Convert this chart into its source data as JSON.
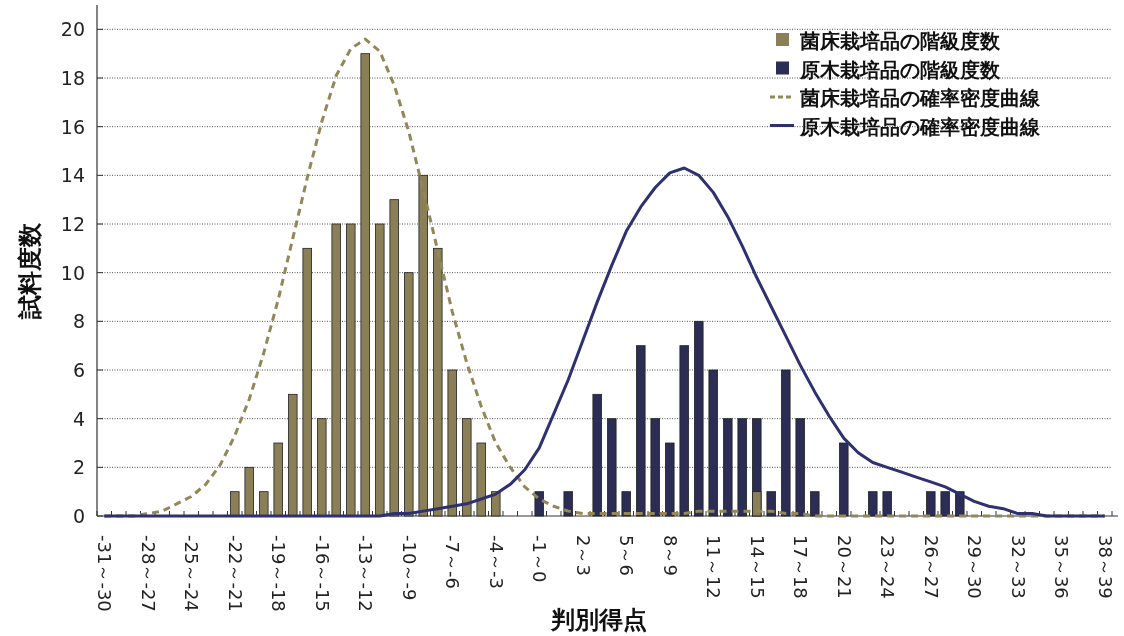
{
  "chart_data": {
    "type": "bar",
    "xlabel": "判別得点",
    "ylabel": "試料度数",
    "categories": [
      "-31～-30",
      null,
      null,
      "-28～-27",
      null,
      null,
      "-25～-24",
      null,
      null,
      "-22～-21",
      null,
      null,
      "-19～-18",
      null,
      null,
      "-16～-15",
      null,
      null,
      "-13～-12",
      null,
      null,
      "-10～-9",
      null,
      null,
      "-7～-6",
      null,
      null,
      "-4～-3",
      null,
      null,
      "-1～0",
      null,
      null,
      "2～3",
      null,
      null,
      "5～6",
      null,
      null,
      "8～9",
      null,
      null,
      "11～12",
      null,
      null,
      "14～15",
      null,
      null,
      "17～18",
      null,
      null,
      "20～21",
      null,
      null,
      "23～24",
      null,
      null,
      "26～27",
      null,
      null,
      "29～30",
      null,
      null,
      "32～33",
      null,
      null,
      "35～36",
      null,
      null,
      "38～39"
    ],
    "series": [
      {
        "name": "菌床栽培品の階級度数",
        "color": "#8b7f57",
        "values": [
          null,
          null,
          null,
          null,
          null,
          null,
          null,
          null,
          null,
          1,
          2,
          1,
          3,
          5,
          11,
          4,
          12,
          12,
          19,
          12,
          13,
          10,
          14,
          11,
          6,
          4,
          3,
          1,
          null,
          null,
          null,
          null,
          null,
          null,
          null,
          null,
          null,
          null,
          null,
          null,
          null,
          null,
          null,
          null,
          null,
          1,
          null,
          null,
          null,
          null,
          null,
          null,
          null,
          null,
          null,
          null,
          null,
          null,
          null,
          null,
          null,
          null,
          null,
          null,
          null,
          null,
          null,
          null,
          null,
          null
        ]
      },
      {
        "name": "原木栽培品の階級度数",
        "color": "#2b2d55",
        "values": [
          null,
          null,
          null,
          null,
          null,
          null,
          null,
          null,
          null,
          null,
          null,
          null,
          null,
          null,
          null,
          null,
          null,
          null,
          null,
          null,
          null,
          null,
          null,
          null,
          null,
          null,
          null,
          null,
          null,
          null,
          1,
          null,
          1,
          null,
          5,
          4,
          1,
          7,
          4,
          3,
          7,
          8,
          6,
          4,
          4,
          4,
          1,
          6,
          4,
          1,
          null,
          3,
          null,
          1,
          1,
          null,
          null,
          1,
          1,
          1,
          null,
          null,
          null,
          null,
          null,
          null,
          null,
          null,
          null,
          null
        ]
      },
      {
        "name": "菌床栽培品の確率密度曲線",
        "type": "line",
        "line_style": "dashed",
        "color": "#938659",
        "values": [
          0,
          0,
          0,
          0.1,
          0.2,
          0.5,
          0.8,
          1.3,
          2.1,
          3.3,
          4.8,
          6.7,
          8.9,
          11.4,
          13.9,
          16.2,
          18.1,
          19.2,
          19.6,
          19.1,
          17.7,
          15.8,
          13.4,
          10.9,
          8.4,
          6.3,
          4.5,
          3,
          2,
          1.2,
          0.7,
          0.4,
          0.2,
          0.1,
          0.1,
          0.1,
          0.1,
          0.1,
          0.1,
          0.1,
          0.1,
          0.2,
          0.2,
          0.2,
          0.2,
          0.2,
          0.2,
          0.1,
          0.1,
          0,
          0,
          0,
          0,
          0,
          0,
          0,
          0,
          0,
          0,
          0,
          0,
          0,
          0,
          0,
          0,
          0,
          0,
          0,
          0,
          0
        ]
      },
      {
        "name": "原木栽培品の確率密度曲線",
        "type": "line",
        "line_style": "solid",
        "color": "#2e3070",
        "values": [
          0,
          0,
          0,
          0,
          0,
          0,
          0,
          0,
          0,
          0,
          0,
          0,
          0,
          0,
          0,
          0,
          0,
          0,
          0,
          0,
          0.1,
          0.1,
          0.2,
          0.3,
          0.4,
          0.5,
          0.7,
          0.9,
          1.3,
          1.9,
          2.8,
          4.2,
          5.6,
          7.2,
          8.8,
          10.3,
          11.7,
          12.7,
          13.5,
          14.1,
          14.3,
          14,
          13.3,
          12.3,
          11.1,
          9.8,
          8.6,
          7.4,
          6.2,
          5.1,
          4.1,
          3.2,
          2.6,
          2.2,
          2,
          1.8,
          1.6,
          1.4,
          1.2,
          0.9,
          0.6,
          0.4,
          0.3,
          0.1,
          0.1,
          0,
          0,
          0,
          0,
          0
        ]
      }
    ],
    "ylim": [
      0,
      21
    ],
    "yticks": [
      0,
      2,
      4,
      6,
      8,
      10,
      12,
      14,
      16,
      18,
      20
    ],
    "grid": "y",
    "legend": "top right"
  }
}
